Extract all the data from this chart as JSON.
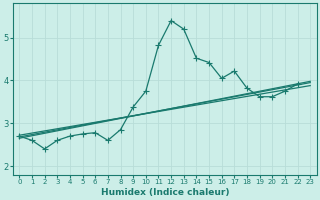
{
  "xlabel": "Humidex (Indice chaleur)",
  "background_color": "#cceee8",
  "grid_color": "#b8ddd8",
  "line_color": "#1a7a6e",
  "xlim": [
    -0.5,
    23.5
  ],
  "ylim": [
    1.8,
    5.8
  ],
  "yticks": [
    2,
    3,
    4,
    5
  ],
  "xticks": [
    0,
    1,
    2,
    3,
    4,
    5,
    6,
    7,
    8,
    9,
    10,
    11,
    12,
    13,
    14,
    15,
    16,
    17,
    18,
    19,
    20,
    21,
    22,
    23
  ],
  "series0_x": [
    0,
    1,
    2,
    3,
    4,
    5,
    6,
    7,
    8,
    9,
    10,
    11,
    12,
    13,
    14,
    15,
    16,
    17,
    18,
    19,
    20,
    21,
    22
  ],
  "series0_y": [
    2.7,
    2.6,
    2.4,
    2.6,
    2.7,
    2.75,
    2.78,
    2.6,
    2.85,
    3.38,
    3.75,
    4.82,
    5.4,
    5.2,
    4.52,
    4.42,
    4.05,
    4.22,
    3.82,
    3.62,
    3.62,
    3.75,
    3.92
  ],
  "trend1_x": [
    0,
    23
  ],
  "trend1_y": [
    2.68,
    3.95
  ],
  "trend2_x": [
    0,
    23
  ],
  "trend2_y": [
    2.72,
    3.88
  ],
  "trend3_x": [
    0,
    23
  ],
  "trend3_y": [
    2.65,
    3.98
  ]
}
